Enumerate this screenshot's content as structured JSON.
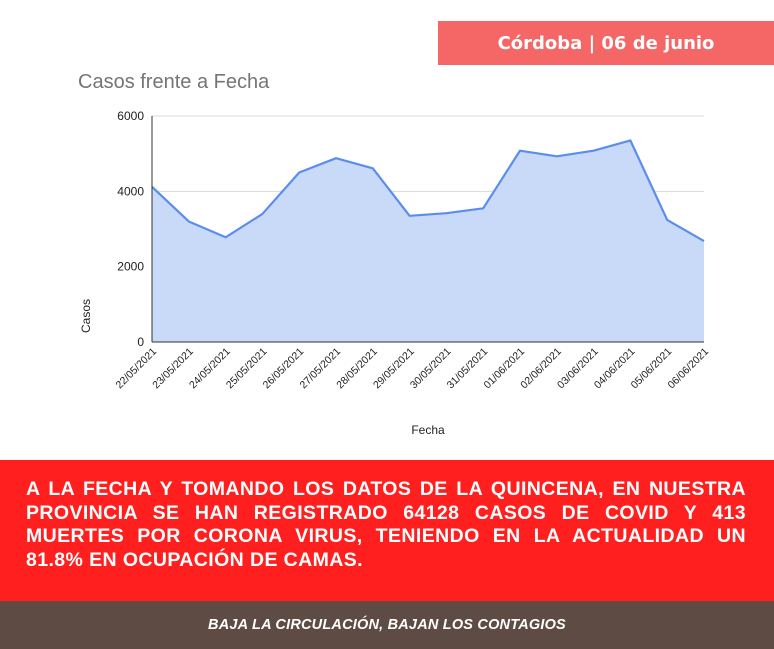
{
  "header": {
    "badge_text": "Córdoba | 06 de junio"
  },
  "chart_data": {
    "type": "area",
    "title": "Casos frente a Fecha",
    "xlabel": "Fecha",
    "ylabel": "Casos",
    "ylim": [
      0,
      6000
    ],
    "yticks": [
      0,
      2000,
      4000,
      6000
    ],
    "grid": true,
    "color": "#5b8def",
    "fill_color": "#c8daf8",
    "categories": [
      "22/05/2021",
      "23/05/2021",
      "24/05/2021",
      "25/05/2021",
      "26/05/2021",
      "27/05/2021",
      "28/05/2021",
      "29/05/2021",
      "30/05/2021",
      "31/05/2021",
      "01/06/2021",
      "02/06/2021",
      "03/06/2021",
      "04/06/2021",
      "05/06/2021",
      "06/06/2021"
    ],
    "series": [
      {
        "values": [
          4120,
          3200,
          2780,
          3400,
          4500,
          4880,
          4610,
          3350,
          3420,
          3550,
          5080,
          4930,
          5080,
          5350,
          3240,
          2680
        ]
      }
    ]
  },
  "info": {
    "text": "A LA FECHA Y TOMANDO LOS DATOS DE LA QUINCENA, EN NUESTRA PROVINCIA SE HAN REGISTRADO 64128 CASOS DE COVID Y 413 MUERTES POR CORONA VIRUS, TENIENDO EN LA ACTUALIDAD UN 81.8% EN OCUPACIÓN DE CAMAS."
  },
  "footer": {
    "text": "BAJA LA CIRCULACIÓN, BAJAN LOS CONTAGIOS"
  },
  "colors": {
    "badge": "#f46766",
    "info_bg": "#ff1f1f",
    "footer_bg": "#5e4b44"
  }
}
